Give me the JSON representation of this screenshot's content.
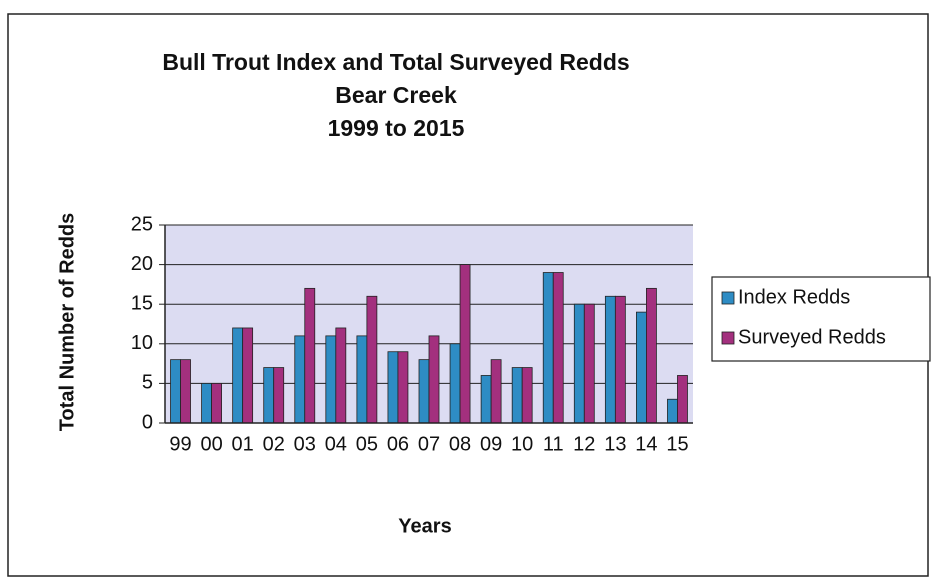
{
  "chart_data": {
    "type": "bar",
    "title": [
      "Bull Trout Index and Total Surveyed Redds",
      "Bear Creek",
      "1999 to 2015"
    ],
    "x_label": "Years",
    "y_label": "Total Number of Redds",
    "categories": [
      "99",
      "00",
      "01",
      "02",
      "03",
      "04",
      "05",
      "06",
      "07",
      "08",
      "09",
      "10",
      "11",
      "12",
      "13",
      "14",
      "15"
    ],
    "series": [
      {
        "name": "Index Redds",
        "color": "#2e8cc4",
        "values": [
          8,
          5,
          12,
          7,
          11,
          11,
          11,
          9,
          8,
          10,
          6,
          7,
          19,
          15,
          16,
          14,
          3
        ]
      },
      {
        "name": "Surveyed Redds",
        "color": "#a3307e",
        "values": [
          8,
          5,
          12,
          7,
          17,
          12,
          16,
          9,
          11,
          20,
          8,
          7,
          19,
          15,
          16,
          17,
          6
        ]
      }
    ],
    "ylim": [
      0,
      25
    ],
    "yticks": [
      0,
      5,
      10,
      15,
      20,
      25
    ],
    "grid": true,
    "legend": "right"
  }
}
